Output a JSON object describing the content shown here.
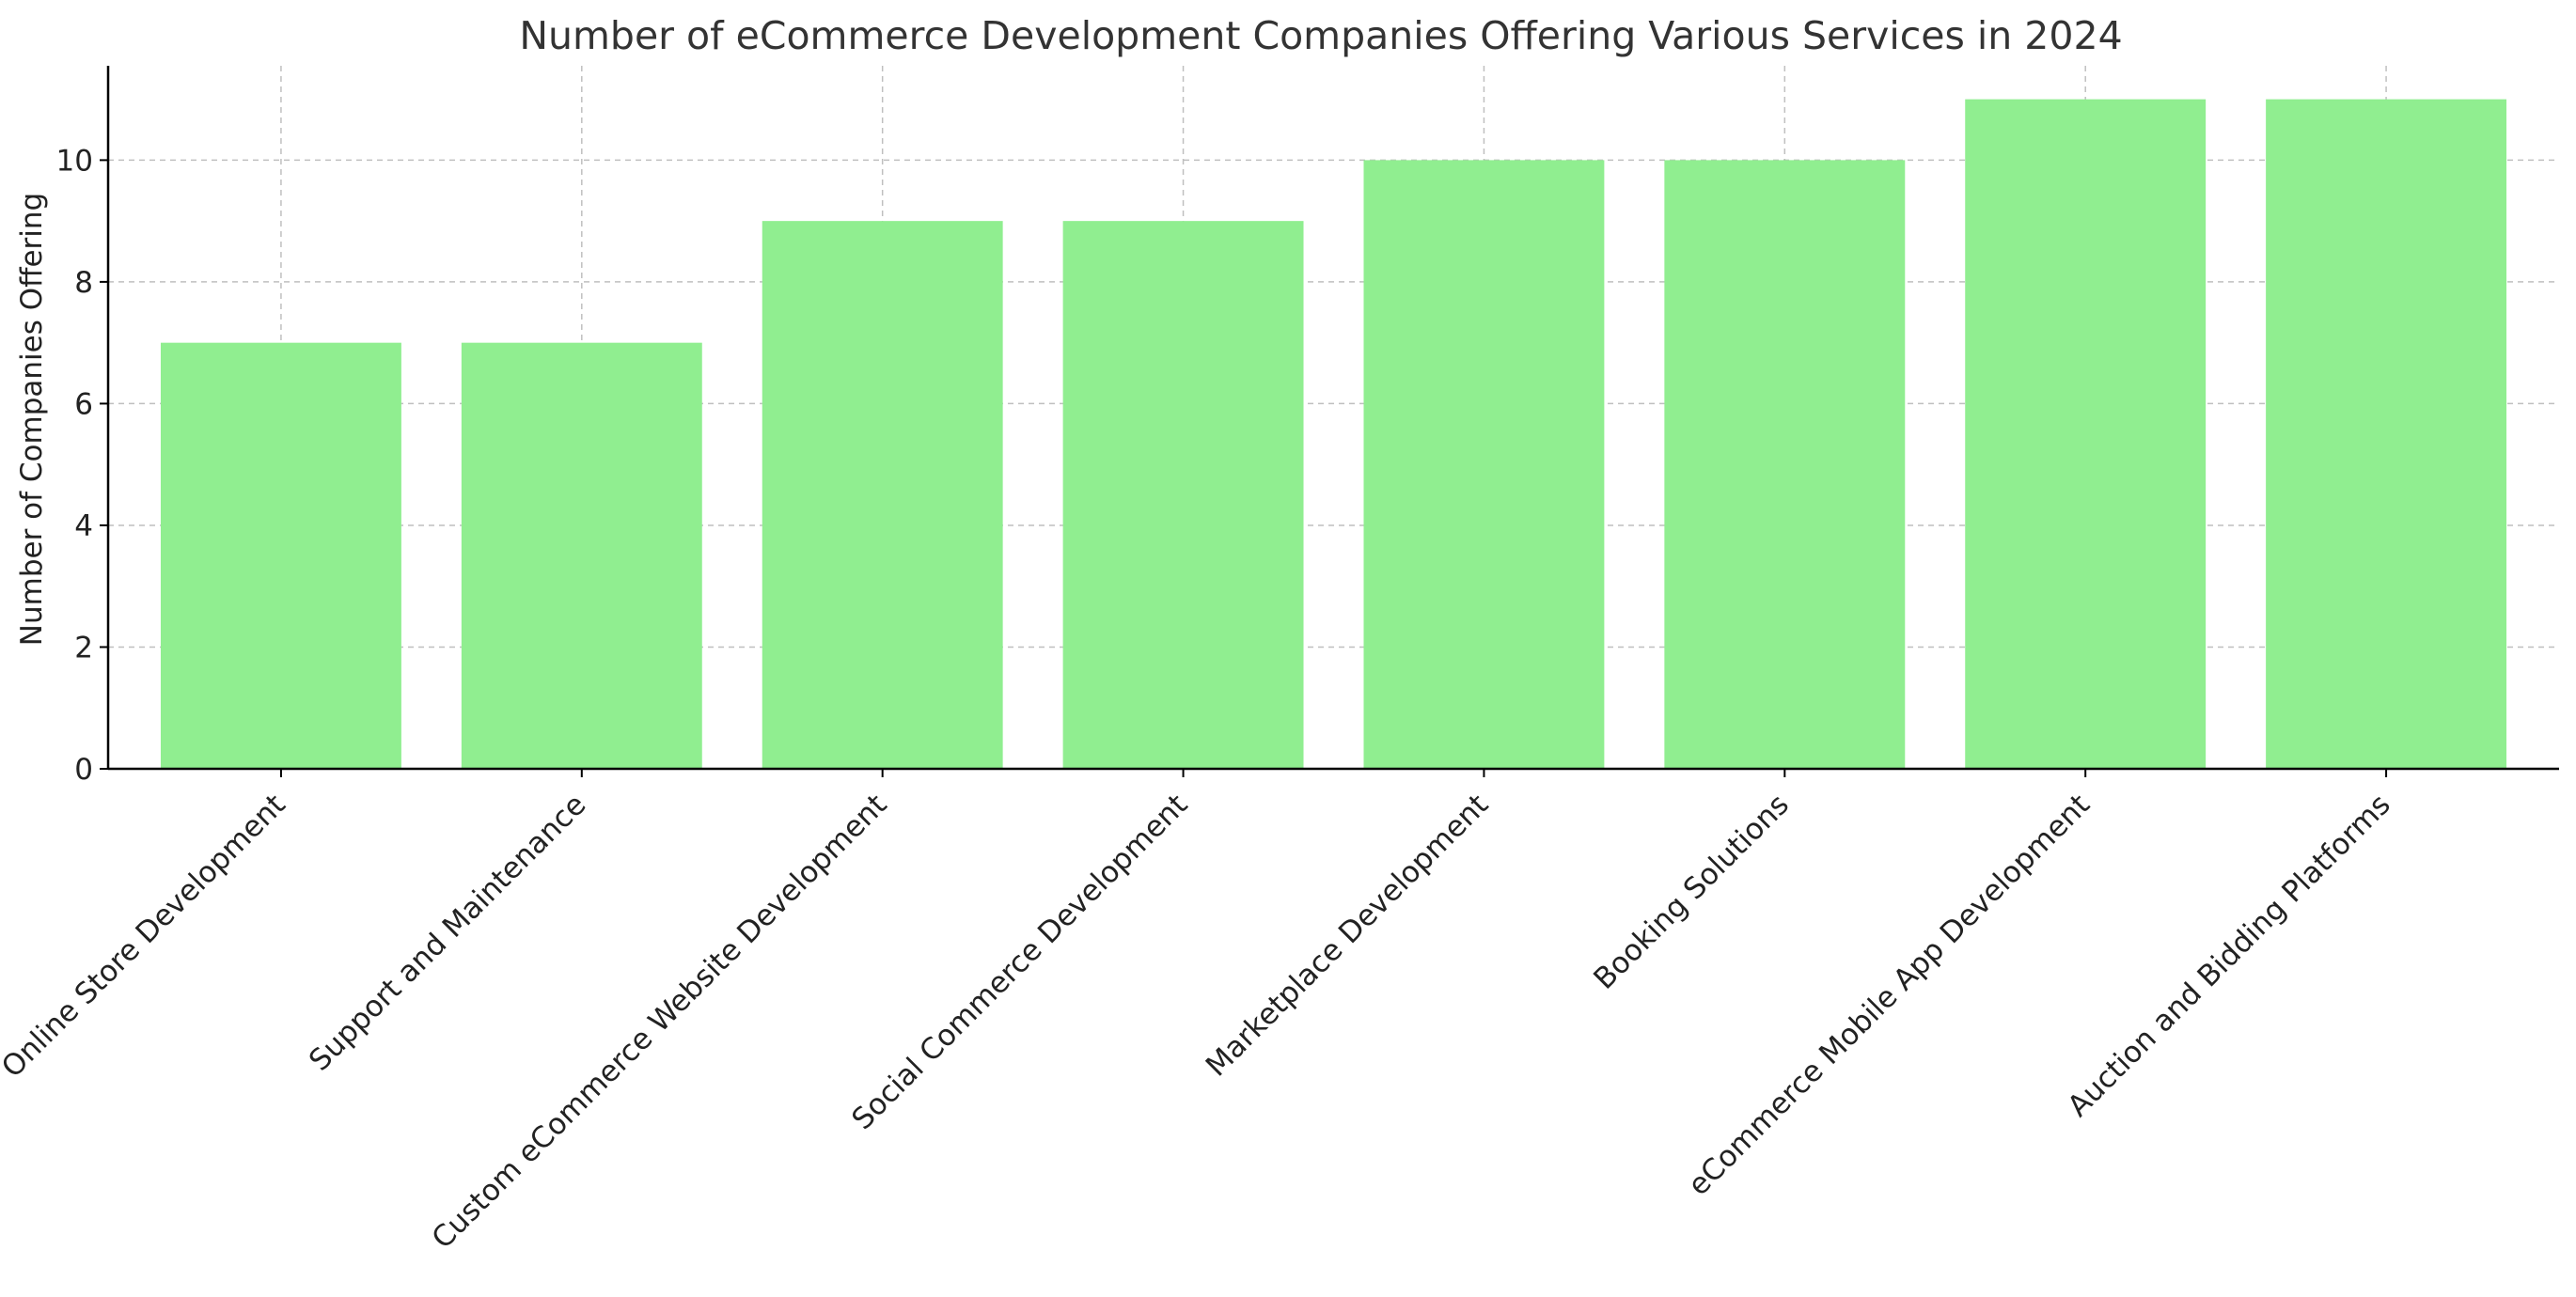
{
  "chart_data": {
    "type": "bar",
    "title": "Number of eCommerce Development Companies Offering Various Services in 2024",
    "xlabel": "",
    "ylabel": "Number of Companies Offering",
    "categories": [
      "Online Store Development",
      "Support and Maintenance",
      "Custom eCommerce Website Development",
      "Social Commerce Development",
      "Marketplace Development",
      "Booking Solutions",
      "eCommerce Mobile App Development",
      "Auction and Bidding Platforms"
    ],
    "values": [
      7,
      7,
      9,
      9,
      10,
      10,
      11,
      11
    ],
    "ylim": [
      0,
      11.55
    ],
    "yticks": [
      0,
      2,
      4,
      6,
      8,
      10
    ],
    "grid": true,
    "bar_color": "#90ee90"
  }
}
